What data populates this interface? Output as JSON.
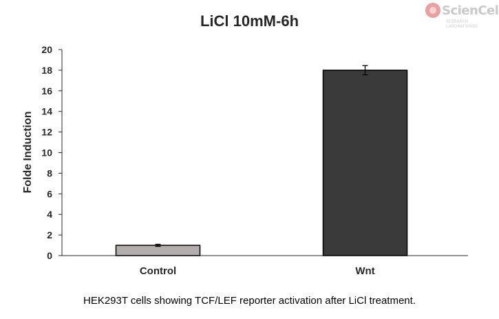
{
  "logo": {
    "text": "ScienCell",
    "subtext": "RESEARCH LABORATORIES"
  },
  "caption": "HEK293T cells showing TCF/LEF reporter activation after LiCl treatment.",
  "colors": {
    "control_bar": "#b3adad",
    "wnt_bar": "#3a3a3a",
    "axis": "#262626",
    "logo": "#e8a0a0"
  },
  "chart_data": {
    "type": "bar",
    "title": "LiCl 10mM-6h",
    "xlabel": "",
    "ylabel": "Folde Induction",
    "categories": [
      "Control",
      "Wnt"
    ],
    "values": [
      1.0,
      18.0
    ],
    "errors": [
      0.1,
      0.45
    ],
    "ylim": [
      0,
      20
    ],
    "yticks": [
      0,
      2,
      4,
      6,
      8,
      10,
      12,
      14,
      16,
      18,
      20
    ],
    "grid": false
  }
}
